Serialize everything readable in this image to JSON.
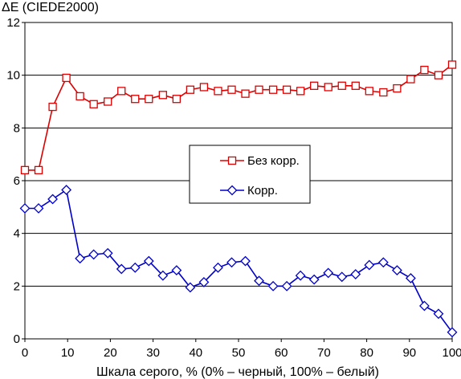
{
  "chart_data": {
    "type": "line",
    "title": "",
    "ylabel": "ΔE (CIEDE2000)",
    "xlabel": "Шкала серого, % (0% – черный, 100% – белый)",
    "xlim": [
      0,
      100
    ],
    "ylim": [
      0,
      12
    ],
    "xticks": [
      0,
      10,
      20,
      30,
      40,
      50,
      60,
      70,
      80,
      90,
      100
    ],
    "yticks": [
      0,
      2,
      4,
      6,
      8,
      10,
      12
    ],
    "grid": "horizontal",
    "legend_position": "center",
    "x": [
      0,
      3.2,
      6.5,
      9.7,
      12.9,
      16.1,
      19.4,
      22.6,
      25.8,
      29.0,
      32.3,
      35.5,
      38.7,
      41.9,
      45.2,
      48.4,
      51.6,
      54.8,
      58.1,
      61.3,
      64.5,
      67.7,
      71.0,
      74.2,
      77.4,
      80.6,
      83.9,
      87.1,
      90.3,
      93.5,
      96.8,
      100
    ],
    "series": [
      {
        "name": "Без корр.",
        "color": "#dd0000",
        "marker": "square",
        "values": [
          6.4,
          6.4,
          8.8,
          9.9,
          9.2,
          8.9,
          9.0,
          9.4,
          9.1,
          9.1,
          9.25,
          9.1,
          9.45,
          9.55,
          9.4,
          9.45,
          9.3,
          9.45,
          9.45,
          9.45,
          9.4,
          9.6,
          9.55,
          9.6,
          9.6,
          9.4,
          9.35,
          9.5,
          9.85,
          10.2,
          10.0,
          10.4
        ]
      },
      {
        "name": "Корр.",
        "color": "#0000cc",
        "marker": "diamond",
        "values": [
          4.95,
          4.95,
          5.3,
          5.65,
          3.05,
          3.2,
          3.25,
          2.65,
          2.7,
          2.95,
          2.4,
          2.6,
          1.95,
          2.15,
          2.7,
          2.9,
          2.95,
          2.2,
          2.0,
          2.0,
          2.4,
          2.25,
          2.5,
          2.35,
          2.45,
          2.8,
          2.9,
          2.6,
          2.3,
          1.25,
          0.95,
          0.25
        ]
      }
    ]
  }
}
